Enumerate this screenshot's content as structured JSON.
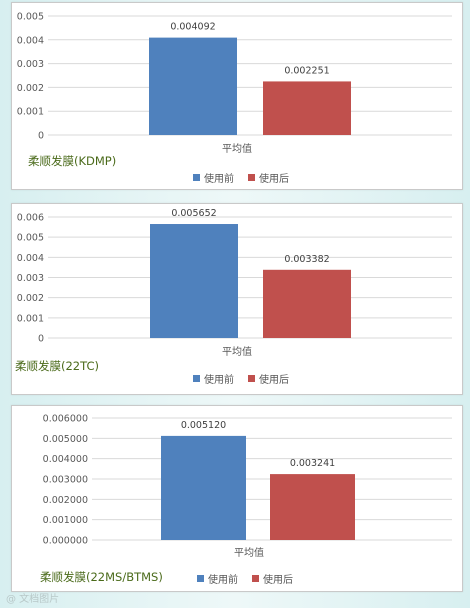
{
  "colors": {
    "before": "#4f81bd",
    "after": "#c0504d",
    "caption": "#4a6a1a",
    "grid": "#d9d9d9"
  },
  "watermark": "@ 文档图片",
  "chart_data": [
    {
      "type": "bar",
      "title": "柔顺发膜(KDMP)",
      "categories": [
        "平均值"
      ],
      "series": [
        {
          "name": "使用前",
          "values": [
            0.004092
          ],
          "label": "0.004092"
        },
        {
          "name": "使用后",
          "values": [
            0.002251
          ],
          "label": "0.002251"
        }
      ],
      "ylim": [
        0,
        0.005
      ],
      "yticks": [
        "0",
        "0.001",
        "0.002",
        "0.003",
        "0.004",
        "0.005"
      ],
      "grid": true,
      "legend": "bottom"
    },
    {
      "type": "bar",
      "title": "柔顺发膜(22TC)",
      "categories": [
        "平均值"
      ],
      "series": [
        {
          "name": "使用前",
          "values": [
            0.005652
          ],
          "label": "0.005652"
        },
        {
          "name": "使用后",
          "values": [
            0.003382
          ],
          "label": "0.003382"
        }
      ],
      "ylim": [
        0,
        0.006
      ],
      "yticks": [
        "0",
        "0.001",
        "0.002",
        "0.003",
        "0.004",
        "0.005",
        "0.006"
      ],
      "grid": true,
      "legend": "bottom"
    },
    {
      "type": "bar",
      "title": "柔顺发膜(22MS/BTMS)",
      "categories": [
        "平均值"
      ],
      "series": [
        {
          "name": "使用前",
          "values": [
            0.00512
          ],
          "label": "0.005120"
        },
        {
          "name": "使用后",
          "values": [
            0.003241
          ],
          "label": "0.003241"
        }
      ],
      "ylim": [
        0,
        0.006
      ],
      "yticks": [
        "0.000000",
        "0.001000",
        "0.002000",
        "0.003000",
        "0.004000",
        "0.005000",
        "0.006000"
      ],
      "grid": true,
      "legend": "bottom"
    }
  ]
}
